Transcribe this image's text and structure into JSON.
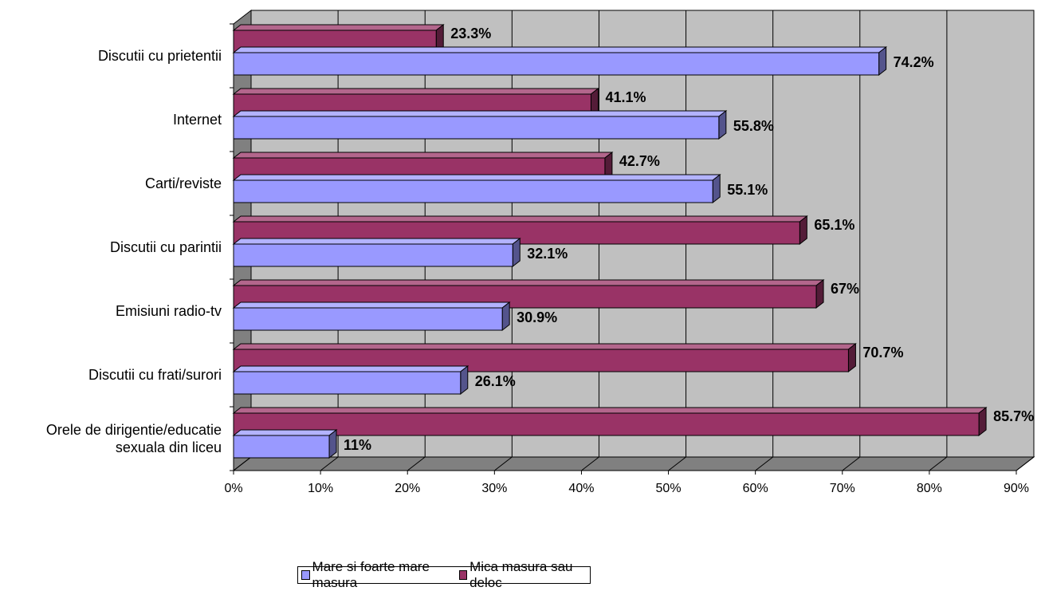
{
  "chart_data": {
    "type": "bar",
    "orientation": "horizontal",
    "categories": [
      "Discutii cu prietentii",
      "Internet",
      "Carti/reviste",
      "Discutii cu parintii",
      "Emisiuni radio-tv",
      "Discutii cu frati/surori",
      "Orele de dirigentie/educatie sexuala din liceu"
    ],
    "category_lines": [
      [
        "Discutii cu prietentii"
      ],
      [
        "Internet"
      ],
      [
        "Carti/reviste"
      ],
      [
        "Discutii cu parintii"
      ],
      [
        "Emisiuni radio-tv"
      ],
      [
        "Discutii cu frati/surori"
      ],
      [
        "Orele de dirigentie/educatie",
        "sexuala din liceu"
      ]
    ],
    "series": [
      {
        "name": "Mare si foarte mare masura",
        "color": "#9999ff",
        "values": [
          74.2,
          55.8,
          55.1,
          32.1,
          30.9,
          26.1,
          11
        ],
        "labels": [
          "74.2%",
          "55.8%",
          "55.1%",
          "32.1%",
          "30.9%",
          "26.1%",
          "11%"
        ]
      },
      {
        "name": "Mica masura sau deloc",
        "color": "#993366",
        "values": [
          23.3,
          41.1,
          42.7,
          65.1,
          67,
          70.7,
          85.7
        ],
        "labels": [
          "23.3%",
          "41.1%",
          "42.7%",
          "65.1%",
          "67%",
          "70.7%",
          "85.7%"
        ]
      }
    ],
    "x_ticks": [
      "0%",
      "10%",
      "20%",
      "30%",
      "40%",
      "50%",
      "60%",
      "70%",
      "80%",
      "90%"
    ],
    "xlim": [
      0,
      90
    ],
    "grid": true,
    "three_d": true,
    "legend_position": "bottom",
    "wall_color": "#c0c0c0",
    "floor_color": "#808080"
  }
}
